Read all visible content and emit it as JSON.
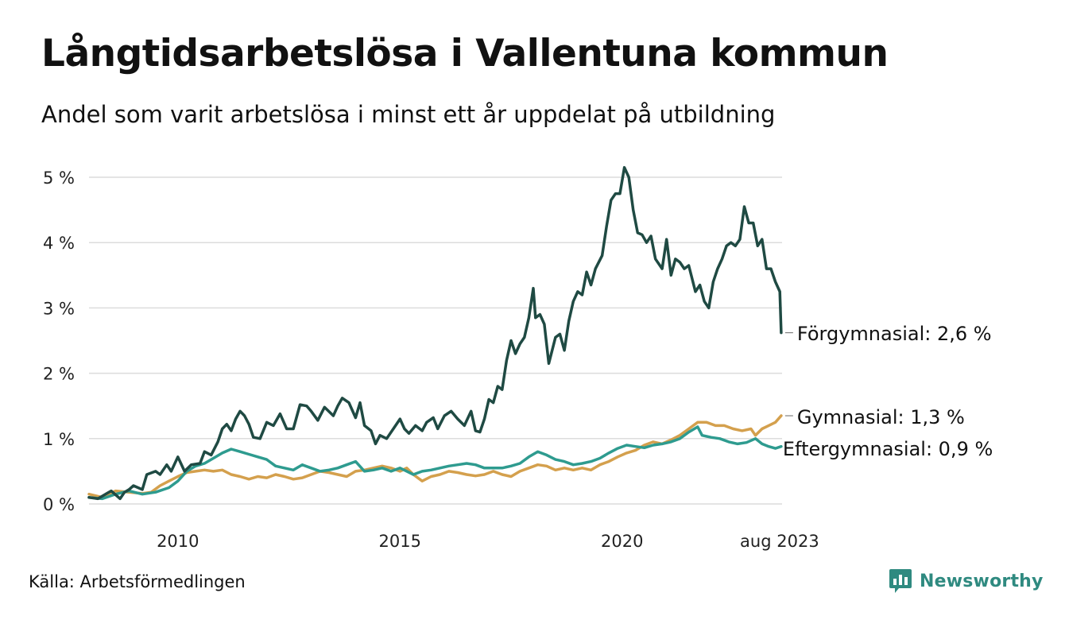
{
  "title": "Långtidsarbetslösa i Vallentuna kommun",
  "subtitle": "Andel som varit arbetslösa i minst ett år uppdelat på utbildning",
  "source": "Källa: Arbetsförmedlingen",
  "brand": {
    "name": "Newsworthy",
    "icon": "newsworthy-logo-icon",
    "color": "#2f8a80"
  },
  "chart_data": {
    "type": "line",
    "title": "Långtidsarbetslösa i Vallentuna kommun",
    "subtitle": "Andel som varit arbetslösa i minst ett år uppdelat på utbildning",
    "xlabel": "",
    "ylabel": "",
    "xlim": [
      2008.0,
      2023.6
    ],
    "ylim": [
      0,
      5.2
    ],
    "yticks": [
      0,
      1,
      2,
      3,
      4,
      5
    ],
    "ytick_labels": [
      "0 %",
      "1 %",
      "2 %",
      "3 %",
      "4 %",
      "5 %"
    ],
    "xticks": [
      2010,
      2015,
      2020,
      2023.58
    ],
    "xtick_labels": [
      "2010",
      "2015",
      "2020",
      "aug 2023"
    ],
    "grid": true,
    "legend": "direct labels at line ends (right)",
    "series": [
      {
        "name": "Förgymnasial",
        "end_label": "Förgymnasial: 2,6 %",
        "color": "#1f4a43",
        "points": [
          [
            2008.0,
            0.1
          ],
          [
            2008.2,
            0.08
          ],
          [
            2008.4,
            0.16
          ],
          [
            2008.5,
            0.2
          ],
          [
            2008.7,
            0.08
          ],
          [
            2008.8,
            0.18
          ],
          [
            2008.9,
            0.22
          ],
          [
            2009.0,
            0.28
          ],
          [
            2009.2,
            0.22
          ],
          [
            2009.3,
            0.45
          ],
          [
            2009.5,
            0.5
          ],
          [
            2009.6,
            0.45
          ],
          [
            2009.75,
            0.6
          ],
          [
            2009.85,
            0.5
          ],
          [
            2010.0,
            0.72
          ],
          [
            2010.15,
            0.5
          ],
          [
            2010.3,
            0.6
          ],
          [
            2010.5,
            0.62
          ],
          [
            2010.6,
            0.8
          ],
          [
            2010.75,
            0.75
          ],
          [
            2010.9,
            0.95
          ],
          [
            2011.0,
            1.15
          ],
          [
            2011.1,
            1.22
          ],
          [
            2011.2,
            1.12
          ],
          [
            2011.3,
            1.3
          ],
          [
            2011.4,
            1.42
          ],
          [
            2011.5,
            1.35
          ],
          [
            2011.6,
            1.22
          ],
          [
            2011.7,
            1.02
          ],
          [
            2011.85,
            1.0
          ],
          [
            2012.0,
            1.25
          ],
          [
            2012.15,
            1.2
          ],
          [
            2012.3,
            1.38
          ],
          [
            2012.45,
            1.15
          ],
          [
            2012.6,
            1.15
          ],
          [
            2012.75,
            1.52
          ],
          [
            2012.9,
            1.5
          ],
          [
            2013.0,
            1.42
          ],
          [
            2013.15,
            1.28
          ],
          [
            2013.3,
            1.48
          ],
          [
            2013.5,
            1.35
          ],
          [
            2013.6,
            1.5
          ],
          [
            2013.7,
            1.62
          ],
          [
            2013.85,
            1.55
          ],
          [
            2014.0,
            1.32
          ],
          [
            2014.1,
            1.55
          ],
          [
            2014.2,
            1.2
          ],
          [
            2014.35,
            1.12
          ],
          [
            2014.45,
            0.92
          ],
          [
            2014.55,
            1.05
          ],
          [
            2014.7,
            1.0
          ],
          [
            2014.85,
            1.15
          ],
          [
            2015.0,
            1.3
          ],
          [
            2015.1,
            1.15
          ],
          [
            2015.2,
            1.08
          ],
          [
            2015.35,
            1.2
          ],
          [
            2015.5,
            1.12
          ],
          [
            2015.6,
            1.25
          ],
          [
            2015.75,
            1.32
          ],
          [
            2015.85,
            1.15
          ],
          [
            2016.0,
            1.35
          ],
          [
            2016.15,
            1.42
          ],
          [
            2016.3,
            1.3
          ],
          [
            2016.45,
            1.2
          ],
          [
            2016.6,
            1.42
          ],
          [
            2016.7,
            1.12
          ],
          [
            2016.8,
            1.1
          ],
          [
            2016.9,
            1.3
          ],
          [
            2017.0,
            1.6
          ],
          [
            2017.1,
            1.55
          ],
          [
            2017.2,
            1.8
          ],
          [
            2017.3,
            1.75
          ],
          [
            2017.4,
            2.2
          ],
          [
            2017.5,
            2.5
          ],
          [
            2017.6,
            2.3
          ],
          [
            2017.7,
            2.45
          ],
          [
            2017.8,
            2.55
          ],
          [
            2017.9,
            2.85
          ],
          [
            2018.0,
            3.3
          ],
          [
            2018.05,
            2.85
          ],
          [
            2018.15,
            2.9
          ],
          [
            2018.25,
            2.75
          ],
          [
            2018.35,
            2.15
          ],
          [
            2018.5,
            2.55
          ],
          [
            2018.6,
            2.6
          ],
          [
            2018.7,
            2.35
          ],
          [
            2018.8,
            2.8
          ],
          [
            2018.9,
            3.1
          ],
          [
            2019.0,
            3.25
          ],
          [
            2019.1,
            3.2
          ],
          [
            2019.2,
            3.55
          ],
          [
            2019.3,
            3.35
          ],
          [
            2019.4,
            3.6
          ],
          [
            2019.55,
            3.8
          ],
          [
            2019.65,
            4.25
          ],
          [
            2019.75,
            4.65
          ],
          [
            2019.85,
            4.75
          ],
          [
            2019.95,
            4.75
          ],
          [
            2020.05,
            5.15
          ],
          [
            2020.15,
            5.0
          ],
          [
            2020.25,
            4.5
          ],
          [
            2020.35,
            4.15
          ],
          [
            2020.45,
            4.12
          ],
          [
            2020.55,
            4.0
          ],
          [
            2020.65,
            4.1
          ],
          [
            2020.75,
            3.75
          ],
          [
            2020.85,
            3.65
          ],
          [
            2020.9,
            3.6
          ],
          [
            2021.0,
            4.05
          ],
          [
            2021.1,
            3.5
          ],
          [
            2021.2,
            3.75
          ],
          [
            2021.3,
            3.7
          ],
          [
            2021.4,
            3.6
          ],
          [
            2021.5,
            3.65
          ],
          [
            2021.65,
            3.25
          ],
          [
            2021.75,
            3.35
          ],
          [
            2021.85,
            3.1
          ],
          [
            2021.95,
            3.0
          ],
          [
            2022.05,
            3.4
          ],
          [
            2022.15,
            3.6
          ],
          [
            2022.25,
            3.75
          ],
          [
            2022.35,
            3.95
          ],
          [
            2022.45,
            4.0
          ],
          [
            2022.55,
            3.95
          ],
          [
            2022.65,
            4.05
          ],
          [
            2022.75,
            4.55
          ],
          [
            2022.85,
            4.3
          ],
          [
            2022.95,
            4.3
          ],
          [
            2023.05,
            3.95
          ],
          [
            2023.15,
            4.05
          ],
          [
            2023.25,
            3.6
          ],
          [
            2023.35,
            3.6
          ],
          [
            2023.45,
            3.4
          ],
          [
            2023.55,
            3.25
          ],
          [
            2023.58,
            2.62
          ]
        ]
      },
      {
        "name": "Gymnasial",
        "end_label": "Gymnasial: 1,3 %",
        "color": "#d4a04d",
        "points": [
          [
            2008.0,
            0.15
          ],
          [
            2008.3,
            0.1
          ],
          [
            2008.6,
            0.2
          ],
          [
            2008.9,
            0.18
          ],
          [
            2009.2,
            0.16
          ],
          [
            2009.4,
            0.18
          ],
          [
            2009.6,
            0.28
          ],
          [
            2009.8,
            0.35
          ],
          [
            2010.0,
            0.42
          ],
          [
            2010.2,
            0.48
          ],
          [
            2010.4,
            0.5
          ],
          [
            2010.6,
            0.52
          ],
          [
            2010.8,
            0.5
          ],
          [
            2011.0,
            0.52
          ],
          [
            2011.2,
            0.45
          ],
          [
            2011.4,
            0.42
          ],
          [
            2011.6,
            0.38
          ],
          [
            2011.8,
            0.42
          ],
          [
            2012.0,
            0.4
          ],
          [
            2012.2,
            0.45
          ],
          [
            2012.4,
            0.42
          ],
          [
            2012.6,
            0.38
          ],
          [
            2012.8,
            0.4
          ],
          [
            2013.0,
            0.45
          ],
          [
            2013.2,
            0.5
          ],
          [
            2013.4,
            0.48
          ],
          [
            2013.6,
            0.45
          ],
          [
            2013.8,
            0.42
          ],
          [
            2014.0,
            0.5
          ],
          [
            2014.2,
            0.52
          ],
          [
            2014.4,
            0.55
          ],
          [
            2014.6,
            0.58
          ],
          [
            2014.8,
            0.55
          ],
          [
            2015.0,
            0.5
          ],
          [
            2015.15,
            0.55
          ],
          [
            2015.3,
            0.45
          ],
          [
            2015.5,
            0.35
          ],
          [
            2015.7,
            0.42
          ],
          [
            2015.9,
            0.45
          ],
          [
            2016.1,
            0.5
          ],
          [
            2016.3,
            0.48
          ],
          [
            2016.5,
            0.45
          ],
          [
            2016.7,
            0.43
          ],
          [
            2016.9,
            0.45
          ],
          [
            2017.1,
            0.5
          ],
          [
            2017.3,
            0.45
          ],
          [
            2017.5,
            0.42
          ],
          [
            2017.7,
            0.5
          ],
          [
            2017.9,
            0.55
          ],
          [
            2018.1,
            0.6
          ],
          [
            2018.3,
            0.58
          ],
          [
            2018.5,
            0.52
          ],
          [
            2018.7,
            0.55
          ],
          [
            2018.9,
            0.52
          ],
          [
            2019.1,
            0.55
          ],
          [
            2019.3,
            0.52
          ],
          [
            2019.5,
            0.6
          ],
          [
            2019.7,
            0.65
          ],
          [
            2019.9,
            0.72
          ],
          [
            2020.1,
            0.78
          ],
          [
            2020.3,
            0.82
          ],
          [
            2020.5,
            0.9
          ],
          [
            2020.7,
            0.95
          ],
          [
            2020.9,
            0.92
          ],
          [
            2021.1,
            0.98
          ],
          [
            2021.3,
            1.05
          ],
          [
            2021.5,
            1.15
          ],
          [
            2021.7,
            1.25
          ],
          [
            2021.9,
            1.25
          ],
          [
            2022.1,
            1.2
          ],
          [
            2022.3,
            1.2
          ],
          [
            2022.5,
            1.15
          ],
          [
            2022.7,
            1.12
          ],
          [
            2022.9,
            1.15
          ],
          [
            2023.0,
            1.05
          ],
          [
            2023.15,
            1.15
          ],
          [
            2023.3,
            1.2
          ],
          [
            2023.45,
            1.25
          ],
          [
            2023.58,
            1.35
          ]
        ]
      },
      {
        "name": "Eftergymnasial",
        "end_label": "Eftergymnasial: 0,9 %",
        "color": "#2e9b8f",
        "points": [
          [
            2008.0,
            0.1
          ],
          [
            2008.3,
            0.08
          ],
          [
            2008.6,
            0.15
          ],
          [
            2008.9,
            0.2
          ],
          [
            2009.2,
            0.15
          ],
          [
            2009.5,
            0.18
          ],
          [
            2009.8,
            0.25
          ],
          [
            2010.0,
            0.35
          ],
          [
            2010.2,
            0.5
          ],
          [
            2010.4,
            0.58
          ],
          [
            2010.6,
            0.62
          ],
          [
            2010.8,
            0.7
          ],
          [
            2011.0,
            0.78
          ],
          [
            2011.2,
            0.84
          ],
          [
            2011.4,
            0.8
          ],
          [
            2011.6,
            0.76
          ],
          [
            2011.8,
            0.72
          ],
          [
            2012.0,
            0.68
          ],
          [
            2012.2,
            0.58
          ],
          [
            2012.4,
            0.55
          ],
          [
            2012.6,
            0.52
          ],
          [
            2012.8,
            0.6
          ],
          [
            2013.0,
            0.55
          ],
          [
            2013.2,
            0.5
          ],
          [
            2013.4,
            0.52
          ],
          [
            2013.6,
            0.55
          ],
          [
            2013.8,
            0.6
          ],
          [
            2014.0,
            0.65
          ],
          [
            2014.2,
            0.5
          ],
          [
            2014.4,
            0.52
          ],
          [
            2014.6,
            0.55
          ],
          [
            2014.8,
            0.5
          ],
          [
            2015.0,
            0.55
          ],
          [
            2015.3,
            0.45
          ],
          [
            2015.5,
            0.5
          ],
          [
            2015.7,
            0.52
          ],
          [
            2015.9,
            0.55
          ],
          [
            2016.1,
            0.58
          ],
          [
            2016.3,
            0.6
          ],
          [
            2016.5,
            0.62
          ],
          [
            2016.7,
            0.6
          ],
          [
            2016.9,
            0.55
          ],
          [
            2017.1,
            0.55
          ],
          [
            2017.3,
            0.55
          ],
          [
            2017.5,
            0.58
          ],
          [
            2017.7,
            0.62
          ],
          [
            2017.9,
            0.72
          ],
          [
            2018.1,
            0.8
          ],
          [
            2018.3,
            0.75
          ],
          [
            2018.5,
            0.68
          ],
          [
            2018.7,
            0.65
          ],
          [
            2018.9,
            0.6
          ],
          [
            2019.1,
            0.62
          ],
          [
            2019.3,
            0.65
          ],
          [
            2019.5,
            0.7
          ],
          [
            2019.7,
            0.78
          ],
          [
            2019.9,
            0.85
          ],
          [
            2020.1,
            0.9
          ],
          [
            2020.3,
            0.88
          ],
          [
            2020.5,
            0.86
          ],
          [
            2020.7,
            0.9
          ],
          [
            2020.9,
            0.92
          ],
          [
            2021.1,
            0.95
          ],
          [
            2021.3,
            1.0
          ],
          [
            2021.5,
            1.1
          ],
          [
            2021.7,
            1.18
          ],
          [
            2021.8,
            1.05
          ],
          [
            2022.0,
            1.02
          ],
          [
            2022.2,
            1.0
          ],
          [
            2022.4,
            0.95
          ],
          [
            2022.6,
            0.92
          ],
          [
            2022.8,
            0.94
          ],
          [
            2023.0,
            1.0
          ],
          [
            2023.15,
            0.92
          ],
          [
            2023.3,
            0.88
          ],
          [
            2023.45,
            0.85
          ],
          [
            2023.58,
            0.88
          ]
        ]
      }
    ]
  }
}
